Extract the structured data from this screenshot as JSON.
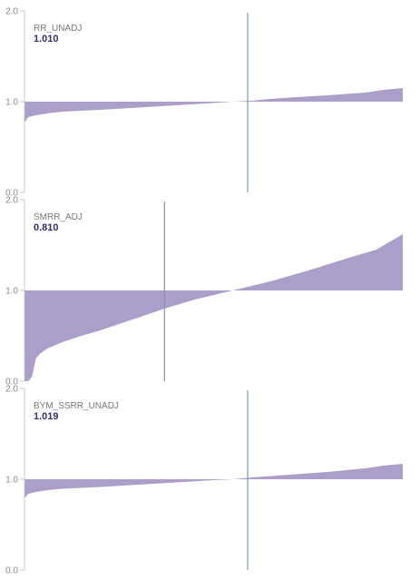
{
  "colors": {
    "fill": "#ab9fc9",
    "axis": "#c8c8c8",
    "marker": "#7e9aac",
    "value_text": "#3b2a6e",
    "label_text": "#777777"
  },
  "chart_data": [
    {
      "type": "area",
      "series_label": "RR_UNADJ",
      "value_label": "1.010",
      "ylim": [
        0,
        2
      ],
      "y_ticks": [
        "0.0",
        "1.0",
        "2.0"
      ],
      "baseline": 1.0,
      "marker_x": 0.59,
      "x": [
        0,
        0.01,
        0.03,
        0.06,
        0.1,
        0.15,
        0.2,
        0.3,
        0.4,
        0.5,
        0.55,
        0.6,
        0.65,
        0.7,
        0.8,
        0.9,
        0.95,
        1.0
      ],
      "y": [
        0.77,
        0.83,
        0.85,
        0.87,
        0.89,
        0.9,
        0.91,
        0.935,
        0.96,
        0.985,
        1.0,
        1.01,
        1.03,
        1.045,
        1.07,
        1.1,
        1.13,
        1.15
      ]
    },
    {
      "type": "area",
      "series_label": "SMRR_ADJ",
      "value_label": "0.810",
      "ylim": [
        0,
        2
      ],
      "y_ticks": [
        "0.0",
        "1.0",
        "2.0"
      ],
      "baseline": 1.0,
      "marker_x": 0.37,
      "x": [
        0,
        0.01,
        0.02,
        0.025,
        0.03,
        0.04,
        0.06,
        0.1,
        0.15,
        0.2,
        0.3,
        0.37,
        0.45,
        0.55,
        0.65,
        0.75,
        0.85,
        0.93,
        1.0
      ],
      "y": [
        0.0,
        0.0,
        0.05,
        0.15,
        0.25,
        0.3,
        0.36,
        0.43,
        0.5,
        0.56,
        0.7,
        0.8,
        0.9,
        1.0,
        1.1,
        1.22,
        1.35,
        1.45,
        1.62
      ]
    },
    {
      "type": "area",
      "series_label": "BYM_SSRR_UNADJ",
      "value_label": "1.019",
      "ylim": [
        0,
        2
      ],
      "y_ticks": [
        "0.0",
        "1.0",
        "2.0"
      ],
      "baseline": 1.0,
      "marker_x": 0.59,
      "x": [
        0,
        0.01,
        0.03,
        0.06,
        0.1,
        0.15,
        0.2,
        0.3,
        0.4,
        0.5,
        0.55,
        0.6,
        0.65,
        0.7,
        0.8,
        0.9,
        0.95,
        1.0
      ],
      "y": [
        0.79,
        0.84,
        0.86,
        0.88,
        0.895,
        0.905,
        0.915,
        0.94,
        0.965,
        0.99,
        1.0,
        1.02,
        1.035,
        1.05,
        1.08,
        1.12,
        1.15,
        1.17
      ]
    }
  ]
}
